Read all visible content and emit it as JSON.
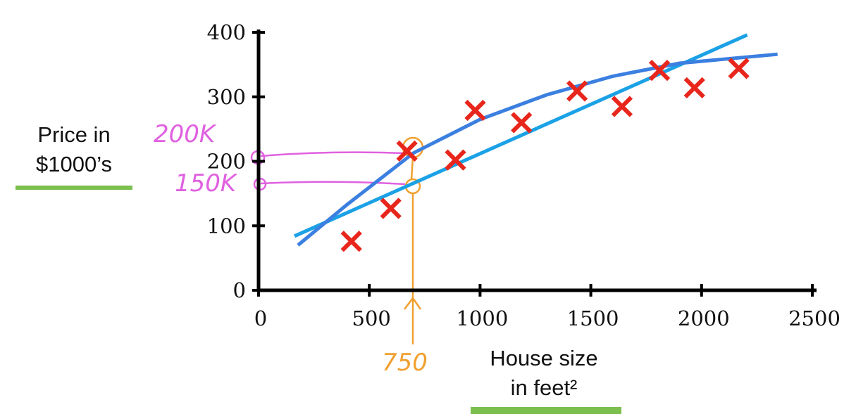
{
  "chart_data": {
    "type": "scatter",
    "xlim": [
      0,
      2500
    ],
    "ylim": [
      0,
      400
    ],
    "xticks": [
      0,
      500,
      1000,
      1500,
      2000,
      2500
    ],
    "yticks": [
      0,
      100,
      200,
      300,
      400
    ],
    "y_label": [
      "Price in",
      "$1000’s"
    ],
    "x_label": [
      "House size",
      "in feet²"
    ],
    "annotations": [
      "200K",
      "150K",
      "750"
    ],
    "series": [
      {
        "kind": "points",
        "color": "#e8261c",
        "x": [
          419,
          597,
          670,
          889,
          978,
          1187,
          1438,
          1641,
          1810,
          1968,
          2168
        ],
        "values": [
          76,
          127,
          216,
          202,
          279,
          260,
          309,
          285,
          341,
          314,
          344
        ]
      },
      {
        "kind": "line",
        "color": "#1ba1e6",
        "x": [
          162,
          2206
        ],
        "values": [
          84,
          396
        ]
      },
      {
        "kind": "line",
        "color": "#3b7fe0",
        "x": [
          178,
          400,
          700,
          1000,
          1300,
          1600,
          1900,
          2343
        ],
        "values": [
          70,
          133,
          213,
          265,
          303,
          332,
          352,
          366
        ]
      }
    ]
  }
}
